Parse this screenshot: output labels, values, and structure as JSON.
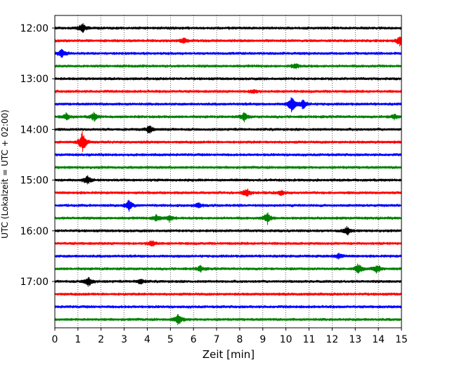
{
  "chart_data": {
    "type": "line",
    "chart_kind": "helicorder-seismogram",
    "xlabel": "Zeit  [min]",
    "ylabel": "UTC (Lokalzeit = UTC + 02:00)",
    "xlim": [
      0,
      15
    ],
    "x_ticks": [
      "0",
      "1",
      "2",
      "3",
      "4",
      "5",
      "6",
      "7",
      "8",
      "9",
      "10",
      "11",
      "12",
      "13",
      "14",
      "15"
    ],
    "y_tick_labels": [
      "12:00",
      "13:00",
      "14:00",
      "15:00",
      "16:00",
      "17:00"
    ],
    "trace_interval_min": 15,
    "trace_start_times": [
      "12:00",
      "12:15",
      "12:30",
      "12:45",
      "13:00",
      "13:15",
      "13:30",
      "13:45",
      "14:00",
      "14:15",
      "14:30",
      "14:45",
      "15:00",
      "15:15",
      "15:30",
      "15:45",
      "16:00",
      "16:15",
      "16:30",
      "16:45",
      "17:00",
      "17:15",
      "17:30",
      "17:45"
    ],
    "trace_colors": [
      "#000000",
      "#ff0000",
      "#0000ff",
      "#008000"
    ],
    "vertical_grid": "dotted",
    "events": [
      {
        "trace": 0,
        "x": 1.2,
        "amp": 7
      },
      {
        "trace": 1,
        "x": 14.95,
        "amp": 8
      },
      {
        "trace": 1,
        "x": 5.6,
        "amp": 4
      },
      {
        "trace": 2,
        "x": 0.3,
        "amp": 6
      },
      {
        "trace": 3,
        "x": 10.4,
        "amp": 4
      },
      {
        "trace": 5,
        "x": 8.6,
        "amp": 3
      },
      {
        "trace": 6,
        "x": 10.25,
        "amp": 12
      },
      {
        "trace": 6,
        "x": 10.75,
        "amp": 7
      },
      {
        "trace": 7,
        "x": 0.5,
        "amp": 5
      },
      {
        "trace": 7,
        "x": 1.7,
        "amp": 6
      },
      {
        "trace": 7,
        "x": 8.2,
        "amp": 6
      },
      {
        "trace": 7,
        "x": 14.7,
        "amp": 4
      },
      {
        "trace": 8,
        "x": 4.1,
        "amp": 6
      },
      {
        "trace": 9,
        "x": 1.2,
        "amp": 16
      },
      {
        "trace": 12,
        "x": 1.4,
        "amp": 6
      },
      {
        "trace": 13,
        "x": 8.3,
        "amp": 6
      },
      {
        "trace": 13,
        "x": 9.8,
        "amp": 3
      },
      {
        "trace": 14,
        "x": 3.2,
        "amp": 8
      },
      {
        "trace": 14,
        "x": 6.2,
        "amp": 4
      },
      {
        "trace": 15,
        "x": 4.4,
        "amp": 5
      },
      {
        "trace": 15,
        "x": 4.95,
        "amp": 5
      },
      {
        "trace": 15,
        "x": 9.2,
        "amp": 8
      },
      {
        "trace": 16,
        "x": 12.65,
        "amp": 6
      },
      {
        "trace": 17,
        "x": 4.2,
        "amp": 5
      },
      {
        "trace": 18,
        "x": 12.3,
        "amp": 4
      },
      {
        "trace": 19,
        "x": 6.3,
        "amp": 4
      },
      {
        "trace": 19,
        "x": 13.15,
        "amp": 8
      },
      {
        "trace": 19,
        "x": 13.95,
        "amp": 6
      },
      {
        "trace": 20,
        "x": 1.45,
        "amp": 8
      },
      {
        "trace": 20,
        "x": 3.7,
        "amp": 4
      },
      {
        "trace": 23,
        "x": 5.35,
        "amp": 8
      }
    ]
  }
}
